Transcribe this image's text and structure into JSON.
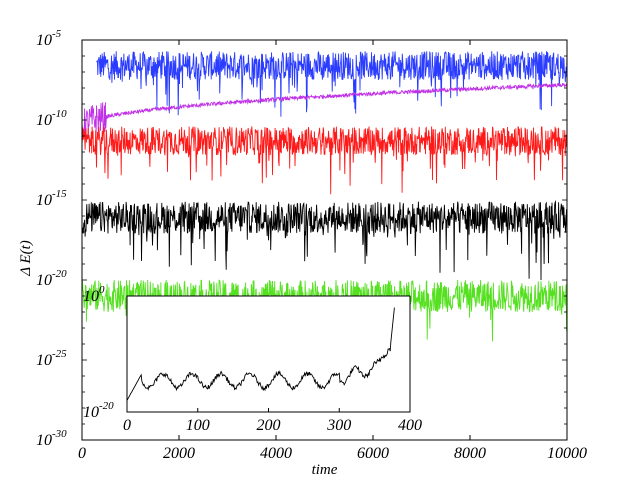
{
  "chart_data": [
    {
      "type": "line",
      "xlabel": "time",
      "ylabel": "Δ E(t)",
      "yscale": "log",
      "xlim": [
        0,
        10000
      ],
      "ylim_exponent": [
        -30,
        -5
      ],
      "x_ticks": [
        "0",
        "2000",
        "4000",
        "6000",
        "8000",
        "10000"
      ],
      "y_ticks": [
        {
          "base": "10",
          "exp": "-5"
        },
        {
          "base": "10",
          "exp": "-10"
        },
        {
          "base": "10",
          "exp": "-15"
        },
        {
          "base": "10",
          "exp": "-20"
        },
        {
          "base": "10",
          "exp": "-25"
        },
        {
          "base": "10",
          "exp": "-30"
        }
      ],
      "grid": false,
      "series": [
        {
          "color": "#2a3cff",
          "exp_mean": -6.6,
          "exp_spread": 0.9,
          "dip_depth": 2.6,
          "x_start": 300,
          "x_end": 10000
        },
        {
          "color": "#c030e6",
          "exp_start": -10.5,
          "exp_end": -7.8,
          "x_start": 0,
          "x_end": 10000,
          "shape": "rising"
        },
        {
          "color": "#ff1a1a",
          "exp_mean": -11.3,
          "exp_spread": 0.9,
          "dip_depth": 2.6,
          "x_start": 0,
          "x_end": 10000
        },
        {
          "color": "#000000",
          "exp_mean": -16.1,
          "exp_spread": 1.0,
          "dip_depth": 3.0,
          "x_start": 0,
          "x_end": 10000
        },
        {
          "color": "#55e020",
          "exp_mean": -21.0,
          "exp_spread": 1.0,
          "dip_depth": 2.4,
          "x_start": 0,
          "x_end": 10000
        }
      ]
    },
    {
      "type": "line",
      "inset": true,
      "xlim": [
        0,
        400
      ],
      "ylim_exponent": [
        -20,
        0
      ],
      "x_ticks": [
        "0",
        "100",
        "200",
        "300",
        "400"
      ],
      "y_ticks": [
        {
          "base": "10",
          "exp": "0"
        },
        {
          "base": "10",
          "exp": "-20"
        }
      ],
      "series": [
        {
          "color": "#000000",
          "description_points": [
            [
              0,
              -18.0
            ],
            [
              20,
              -13.6
            ],
            [
              300,
              -14.5
            ],
            [
              350,
              -12.5
            ],
            [
              372,
              -9.0
            ],
            [
              378,
              -2.0
            ]
          ]
        }
      ]
    }
  ]
}
